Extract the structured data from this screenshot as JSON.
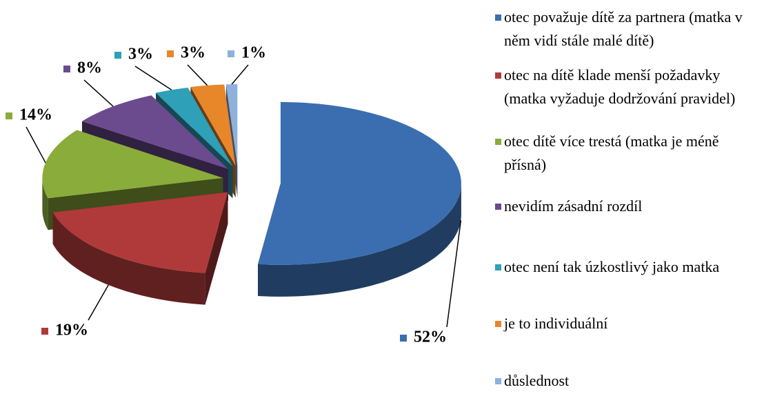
{
  "chart_data": {
    "type": "pie",
    "categories": [
      "otec považuje dítě za partnera (matka v něm vidí stále malé dítě)",
      "otec na dítě klade menší požadavky (matka vyžaduje dodržování pravidel)",
      "otec dítě více trestá (matka je méně přísná)",
      "nevidím zásadní rozdíl",
      "otec není tak úzkostlivý jako matka",
      "je to individuální",
      "důslednost"
    ],
    "values": [
      52,
      19,
      14,
      8,
      3,
      3,
      1
    ],
    "value_labels": [
      "52%",
      "19%",
      "14%",
      "8%",
      "3%",
      "3%",
      "1%"
    ],
    "colors": [
      "#3a6eb0",
      "#b03a3a",
      "#8aac3a",
      "#6b4a8e",
      "#2ea0b8",
      "#e8862a",
      "#8fb0dc"
    ]
  }
}
